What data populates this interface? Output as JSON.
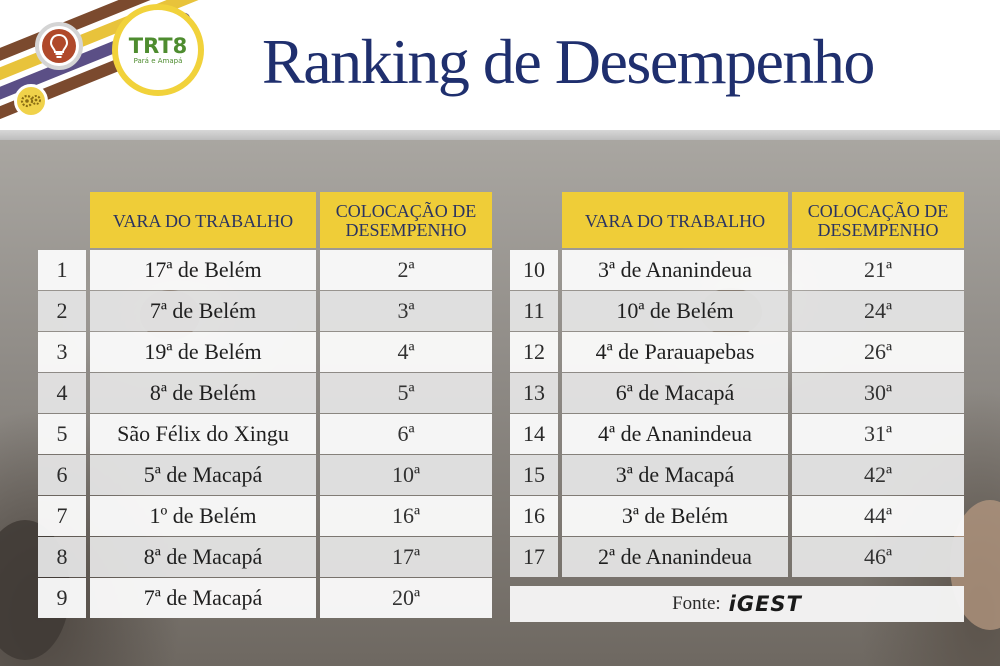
{
  "title": "Ranking de Desempenho",
  "logo": {
    "text": "TRT8",
    "subtitle": "Pará e Amapá",
    "colors": {
      "green": "#4e8c2f",
      "yellow": "#f1d23b",
      "brown": "#7b4a2e",
      "purple": "#5b4f86"
    }
  },
  "icons": [
    "lightbulb-icon",
    "gears-icon"
  ],
  "colors": {
    "title": "#1f2f6e",
    "header_fill": "#efcd38",
    "header_text": "#2a3361"
  },
  "tables": [
    {
      "headers": {
        "vara": "VARA DO TRABALHO",
        "colocacao": "COLOCAÇÃO DE DESEMPENHO"
      },
      "rows": [
        {
          "rank": "1",
          "vara": "17ª  de Belém",
          "colocacao": "2ª"
        },
        {
          "rank": "2",
          "vara": "7ª  de Belém",
          "colocacao": "3ª"
        },
        {
          "rank": "3",
          "vara": "19ª de Belém",
          "colocacao": "4ª"
        },
        {
          "rank": "4",
          "vara": "8ª de Belém",
          "colocacao": "5ª"
        },
        {
          "rank": "5",
          "vara": "São Félix do Xingu",
          "colocacao": "6ª"
        },
        {
          "rank": "6",
          "vara": "5ª de Macapá",
          "colocacao": "10ª"
        },
        {
          "rank": "7",
          "vara": "1º de Belém",
          "colocacao": "16ª"
        },
        {
          "rank": "8",
          "vara": "8ª de Macapá",
          "colocacao": "17ª"
        },
        {
          "rank": "9",
          "vara": "7ª de Macapá",
          "colocacao": "20ª"
        }
      ]
    },
    {
      "headers": {
        "vara": "VARA DO TRABALHO",
        "colocacao": "COLOCAÇÃO DE DESEMPENHO"
      },
      "rows": [
        {
          "rank": "10",
          "vara": "3ª de Ananindeua",
          "colocacao": "21ª"
        },
        {
          "rank": "11",
          "vara": "10ª de Belém",
          "colocacao": "24ª"
        },
        {
          "rank": "12",
          "vara": "4ª de Parauapebas",
          "colocacao": "26ª"
        },
        {
          "rank": "13",
          "vara": "6ª de Macapá",
          "colocacao": "30ª"
        },
        {
          "rank": "14",
          "vara": "4ª de Ananindeua",
          "colocacao": "31ª"
        },
        {
          "rank": "15",
          "vara": "3ª de Macapá",
          "colocacao": "42ª"
        },
        {
          "rank": "16",
          "vara": "3ª de Belém",
          "colocacao": "44ª"
        },
        {
          "rank": "17",
          "vara": "2ª de Ananindeua",
          "colocacao": "46ª"
        }
      ]
    }
  ],
  "source": {
    "label": "Fonte:",
    "logo_text": "iGEST"
  }
}
